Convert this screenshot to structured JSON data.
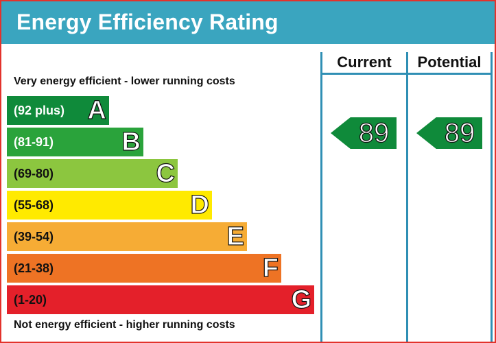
{
  "header": {
    "title": "Energy Efficiency Rating"
  },
  "columns": {
    "current": "Current",
    "potential": "Potential"
  },
  "notes": {
    "top": "Very energy efficient - lower running costs",
    "bottom": "Not energy efficient - higher running costs"
  },
  "bands": [
    {
      "range": "(92 plus)",
      "letter": "A",
      "color": "#0f8a3a"
    },
    {
      "range": "(81-91)",
      "letter": "B",
      "color": "#2aa33b"
    },
    {
      "range": "(69-80)",
      "letter": "C",
      "color": "#8cc63f"
    },
    {
      "range": "(55-68)",
      "letter": "D",
      "color": "#ffea00"
    },
    {
      "range": "(39-54)",
      "letter": "E",
      "color": "#f6ac35"
    },
    {
      "range": "(21-38)",
      "letter": "F",
      "color": "#ee7324"
    },
    {
      "range": "(1-20)",
      "letter": "G",
      "color": "#e4202a"
    }
  ],
  "ratings": {
    "current": "89",
    "potential": "89"
  }
}
